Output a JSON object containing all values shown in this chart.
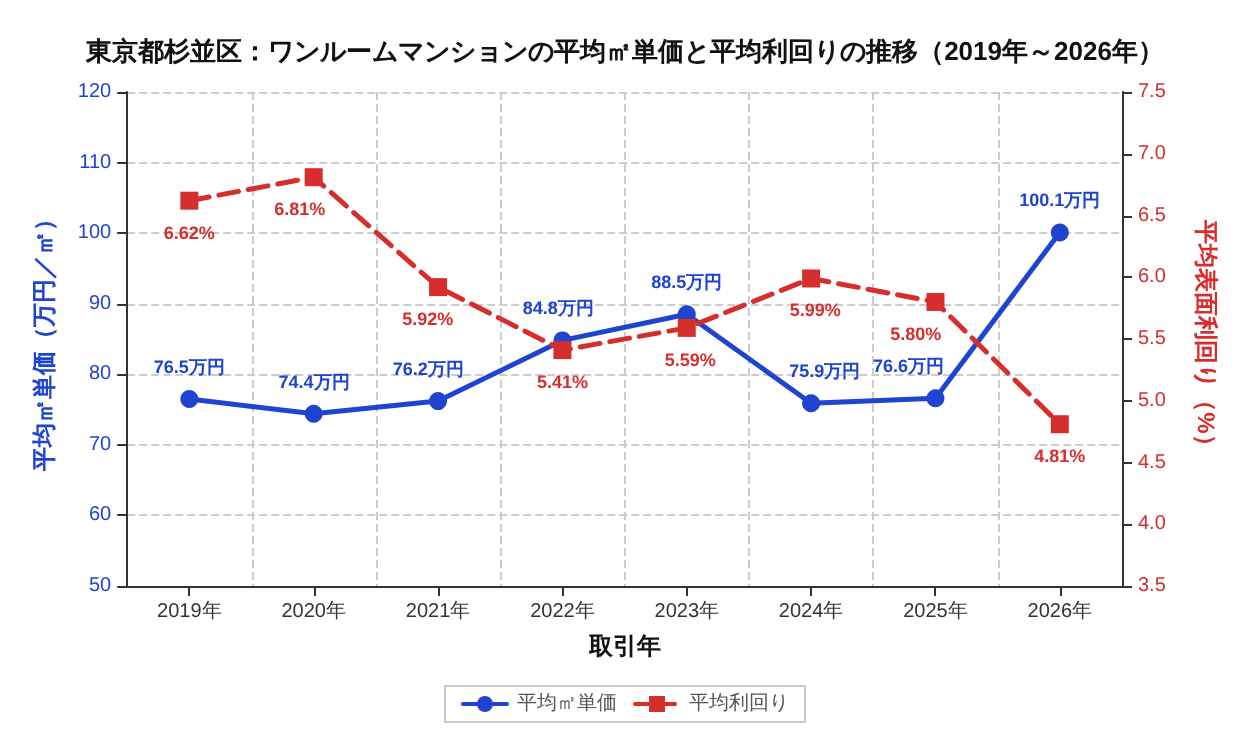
{
  "chart_data": {
    "type": "line",
    "title": "東京都杉並区：ワンルームマンションの平均㎡単価と平均利回りの推移（2019年～2026年）",
    "xlabel": "取引年",
    "ylabel": "平均㎡単価（万円／㎡）",
    "y2label": "平均表面利回り（%）",
    "categories": [
      "2019年",
      "2020年",
      "2021年",
      "2022年",
      "2023年",
      "2024年",
      "2025年",
      "2026年"
    ],
    "series": [
      {
        "name": "平均㎡単価",
        "color": "#1f44d0",
        "values": [
          76.5,
          74.4,
          76.2,
          84.8,
          88.5,
          75.9,
          76.6,
          100.1
        ],
        "marker": "circle",
        "line_style": "solid",
        "value_labels": [
          "76.5万円",
          "74.4万円",
          "76.2万円",
          "84.8万円",
          "88.5万円",
          "75.9万円",
          "76.6万円",
          "100.1万円"
        ]
      },
      {
        "name": "平均利回り",
        "color": "#d62d2d",
        "axis": "y2",
        "values": [
          6.62,
          6.81,
          5.92,
          5.41,
          5.59,
          5.99,
          5.8,
          4.81
        ],
        "marker": "square",
        "line_style": "dashed",
        "value_labels": [
          "6.62%",
          "6.81%",
          "5.92%",
          "5.41%",
          "5.59%",
          "5.99%",
          "5.80%",
          "4.81%"
        ]
      }
    ],
    "ylim": [
      50,
      120
    ],
    "yticks": [
      50,
      60,
      70,
      80,
      90,
      100,
      110,
      120
    ],
    "y2lim": [
      3.5,
      7.5
    ],
    "y2ticks": [
      3.5,
      {
        "value": 4,
        "label": "4.0"
      },
      4.5,
      {
        "value": 5,
        "label": "5.0"
      },
      5.5,
      {
        "value": 6,
        "label": "6.0"
      },
      6.5,
      {
        "value": 7,
        "label": "7.0"
      },
      7.5
    ],
    "grid": true,
    "legend": "bottom"
  }
}
